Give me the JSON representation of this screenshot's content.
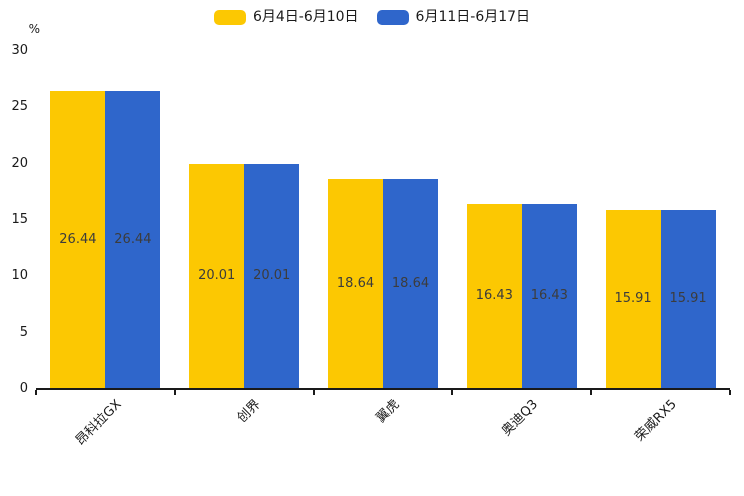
{
  "chart_data": {
    "type": "bar",
    "title": "",
    "categories": [
      "昂科拉GX",
      "创界",
      "翼虎",
      "奥迪Q3",
      "荣威RX5"
    ],
    "series": [
      {
        "name": "6月4日-6月10日",
        "color": "#FCC802",
        "values": [
          26.44,
          20.01,
          18.64,
          16.43,
          15.91
        ]
      },
      {
        "name": "6月11日-6月17日",
        "color": "#2F66CB",
        "values": [
          26.44,
          20.01,
          18.64,
          16.43,
          15.91
        ]
      }
    ],
    "xlabel": "",
    "ylabel": "%",
    "ylim": [
      0,
      30
    ],
    "yticks": [
      0,
      5,
      10,
      15,
      20,
      25,
      30
    ],
    "legend_position": "top-center",
    "grid": false,
    "bar_label_color": "#3c3c3c",
    "axis_color": "#1a1a1a"
  }
}
